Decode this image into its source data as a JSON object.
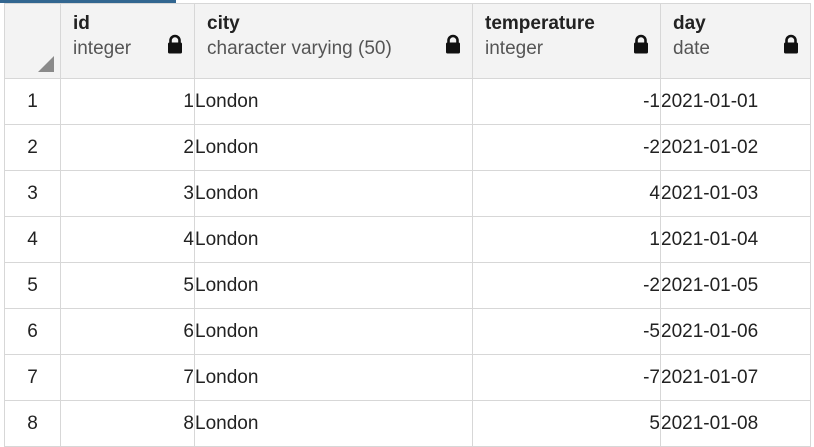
{
  "header": {
    "columns": [
      {
        "name": "id",
        "type": "integer",
        "locked": true
      },
      {
        "name": "city",
        "type": "character varying (50)",
        "locked": true
      },
      {
        "name": "temperature",
        "type": "integer",
        "locked": true
      },
      {
        "name": "day",
        "type": "date",
        "locked": true
      }
    ]
  },
  "rows": [
    {
      "rownum": "1",
      "id": "1",
      "city": "London",
      "temperature": "-1",
      "day": "2021-01-01"
    },
    {
      "rownum": "2",
      "id": "2",
      "city": "London",
      "temperature": "-2",
      "day": "2021-01-02"
    },
    {
      "rownum": "3",
      "id": "3",
      "city": "London",
      "temperature": "4",
      "day": "2021-01-03"
    },
    {
      "rownum": "4",
      "id": "4",
      "city": "London",
      "temperature": "1",
      "day": "2021-01-04"
    },
    {
      "rownum": "5",
      "id": "5",
      "city": "London",
      "temperature": "-2",
      "day": "2021-01-05"
    },
    {
      "rownum": "6",
      "id": "6",
      "city": "London",
      "temperature": "-5",
      "day": "2021-01-06"
    },
    {
      "rownum": "7",
      "id": "7",
      "city": "London",
      "temperature": "-7",
      "day": "2021-01-07"
    },
    {
      "rownum": "8",
      "id": "8",
      "city": "London",
      "temperature": "5",
      "day": "2021-01-08"
    }
  ],
  "icons": {
    "lock": "lock-icon",
    "select_all": "select-all-corner-icon"
  },
  "colors": {
    "header_bg": "#f3f3f3",
    "grid_line": "#d7d7d7",
    "accent": "#326690"
  }
}
